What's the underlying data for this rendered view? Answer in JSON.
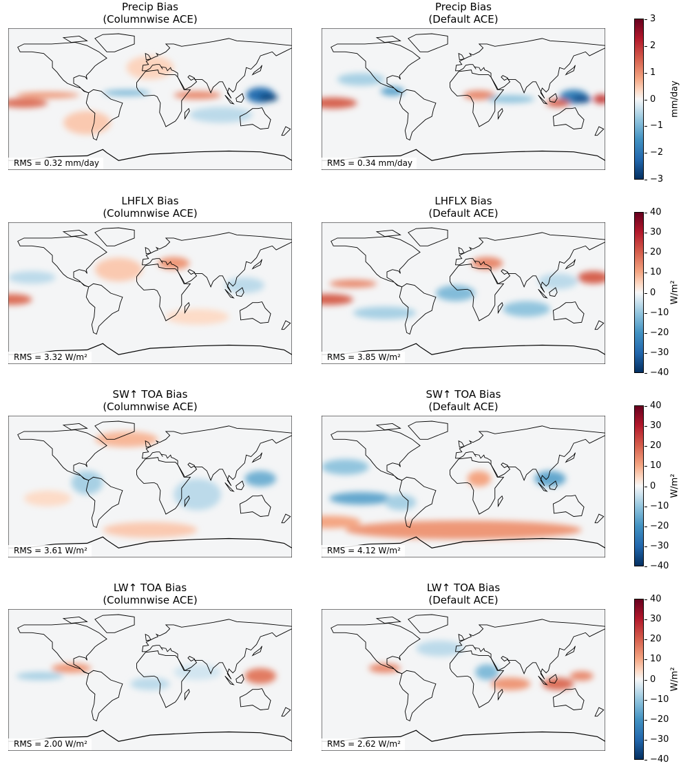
{
  "panels": [
    {
      "title": "Precip Bias",
      "subtitle": "(Columnwise ACE)",
      "rms": "RMS = 0.32 mm/day"
    },
    {
      "title": "Precip Bias",
      "subtitle": "(Default ACE)",
      "rms": "RMS = 0.34 mm/day"
    },
    {
      "title": "LHFLX Bias",
      "subtitle": "(Columnwise ACE)",
      "rms": "RMS = 3.32 W/m²"
    },
    {
      "title": "LHFLX Bias",
      "subtitle": "(Default ACE)",
      "rms": "RMS = 3.85 W/m²"
    },
    {
      "title": "SW↑ TOA Bias",
      "subtitle": "(Columnwise ACE)",
      "rms": "RMS = 3.61 W/m²"
    },
    {
      "title": "SW↑ TOA Bias",
      "subtitle": "(Default ACE)",
      "rms": "RMS = 4.12 W/m²"
    },
    {
      "title": "LW↑ TOA Bias",
      "subtitle": "(Columnwise ACE)",
      "rms": "RMS = 2.00 W/m²"
    },
    {
      "title": "LW↑ TOA Bias",
      "subtitle": "(Default ACE)",
      "rms": "RMS = 2.62 W/m²"
    }
  ],
  "colorbars": [
    {
      "label": "mm/day",
      "range": [
        -3,
        3
      ],
      "ticks": [
        "3",
        "2",
        "1",
        "0",
        "−1",
        "−2",
        "−3"
      ],
      "colormap": "RdBu_r"
    },
    {
      "label": "W/m²",
      "range": [
        -40,
        40
      ],
      "ticks": [
        "40",
        "30",
        "20",
        "10",
        "0",
        "−10",
        "−20",
        "−30",
        "−40"
      ],
      "colormap": "RdBu_r"
    },
    {
      "label": "W/m²",
      "range": [
        -40,
        40
      ],
      "ticks": [
        "40",
        "30",
        "20",
        "10",
        "0",
        "−10",
        "−20",
        "−30",
        "−40"
      ],
      "colormap": "RdBu_r"
    },
    {
      "label": "W/m²",
      "range": [
        -40,
        40
      ],
      "ticks": [
        "40",
        "30",
        "20",
        "10",
        "0",
        "−10",
        "−20",
        "−30",
        "−40"
      ],
      "colormap": "RdBu_r"
    }
  ],
  "colors": {
    "positive": "#b2182b",
    "negative": "#2166ac",
    "zero": "#f7f7f7",
    "coastline": "#000000"
  }
}
